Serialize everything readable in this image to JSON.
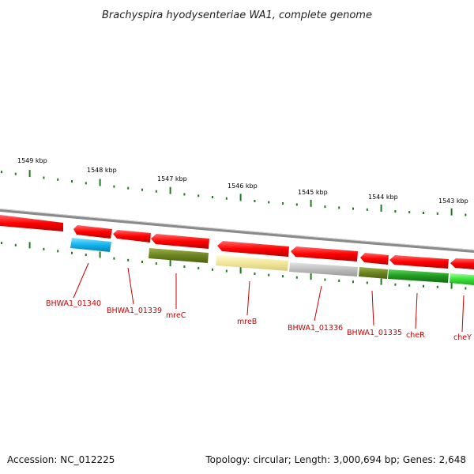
{
  "title": "Brachyspira hyodysenteriae WA1, complete genome",
  "footer": {
    "accession": "Accession: NC_012225",
    "summary": "Topology: circular; Length: 3,000,694 bp; Genes: 2,648"
  },
  "kbp_labels": [
    "1549 kbp",
    "1548 kbp",
    "1547 kbp",
    "1546 kbp",
    "1545 kbp",
    "1544 kbp",
    "1543 kbp"
  ],
  "gene_labels": [
    "BHWA1_01340",
    "BHWA1_01339",
    "mreC",
    "mreB",
    "BHWA1_01336",
    "BHWA1_01335",
    "cheR",
    "cheY"
  ],
  "colors": {
    "forward_gene": "#ff0000",
    "tick": "#1f7a1f",
    "backbone": "#8a8a8a",
    "label": "#cc0000"
  }
}
